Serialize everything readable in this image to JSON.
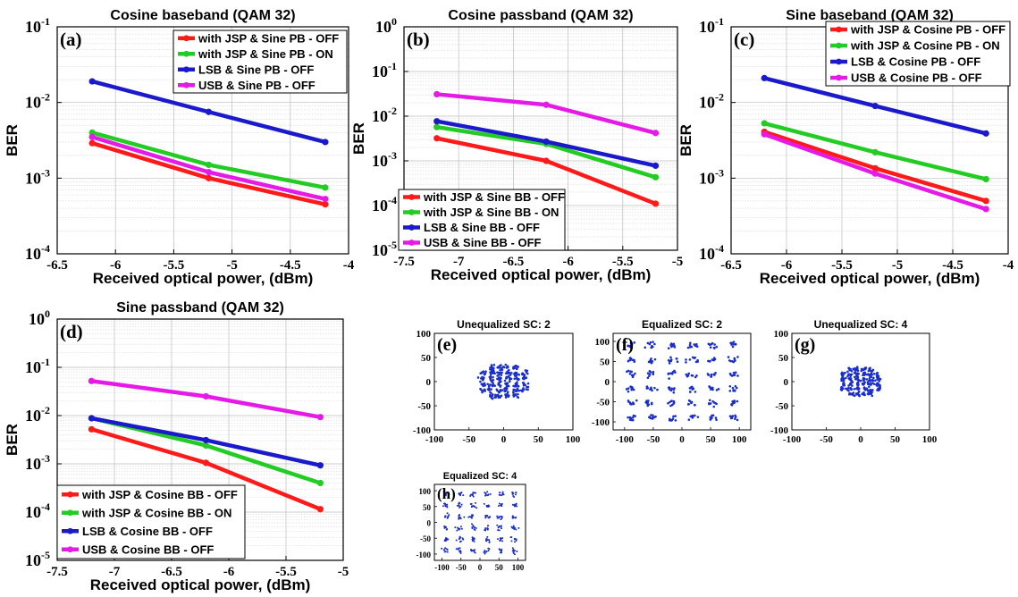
{
  "colors": {
    "red": "#ff1a1a",
    "green": "#22cc22",
    "blue": "#1a1acc",
    "magenta": "#e61ae6",
    "constellation": "#1a2ecc"
  },
  "chart_data": [
    {
      "id": "a",
      "type": "line",
      "scale_y": "log",
      "grid": true,
      "title": "Cosine baseband (QAM 32)",
      "panel_label": "(a)",
      "xlabel": "Received optical power, (dBm)",
      "ylabel": "BER",
      "xlim": [
        -6.5,
        -4
      ],
      "ylim_exp": [
        -4,
        -1
      ],
      "xticks": [
        -6.5,
        -6,
        -5.5,
        -5,
        -4.5,
        -4
      ],
      "xticklabels": [
        "-6.5",
        "-6",
        "-5.5",
        "-5",
        "-4.5",
        "-4"
      ],
      "x": [
        -6.2,
        -5.2,
        -4.2
      ],
      "legend_position": "top-right",
      "series": [
        {
          "name": "with JSP & Sine PB - OFF",
          "color": "#ff1a1a",
          "values": [
            0.0029,
            0.001,
            0.00045
          ]
        },
        {
          "name": "with JSP & Sine PB - ON",
          "color": "#22cc22",
          "values": [
            0.004,
            0.0015,
            0.00075
          ]
        },
        {
          "name": "LSB & Sine PB - OFF",
          "color": "#1a1acc",
          "values": [
            0.019,
            0.0075,
            0.003
          ]
        },
        {
          "name": "USB & Sine PB - OFF",
          "color": "#e61ae6",
          "values": [
            0.0035,
            0.0012,
            0.00053
          ]
        }
      ]
    },
    {
      "id": "b",
      "type": "line",
      "scale_y": "log",
      "grid": true,
      "title": "Cosine passband (QAM 32)",
      "panel_label": "(b)",
      "xlabel": "Received optical power, (dBm)",
      "ylabel": "BER",
      "xlim": [
        -7.5,
        -5
      ],
      "ylim_exp": [
        -5,
        0
      ],
      "xticks": [
        -7.5,
        -7,
        -6.5,
        -6,
        -5.5,
        -5
      ],
      "xticklabels": [
        "-7.5",
        "-7",
        "-6.5",
        "-6",
        "-5.5",
        "-5"
      ],
      "x": [
        -7.2,
        -6.2,
        -5.2
      ],
      "legend_position": "bottom-left",
      "series": [
        {
          "name": "with JSP & Sine BB - OFF",
          "color": "#ff1a1a",
          "values": [
            0.0032,
            0.001,
            0.00011
          ]
        },
        {
          "name": "with JSP & Sine BB - ON",
          "color": "#22cc22",
          "values": [
            0.0057,
            0.0024,
            0.00043
          ]
        },
        {
          "name": "LSB & Sine BB - OFF",
          "color": "#1a1acc",
          "values": [
            0.0077,
            0.0027,
            0.00078
          ]
        },
        {
          "name": "USB & Sine BB - OFF",
          "color": "#e61ae6",
          "values": [
            0.031,
            0.018,
            0.0042
          ]
        }
      ]
    },
    {
      "id": "c",
      "type": "line",
      "scale_y": "log",
      "grid": true,
      "title": "Sine baseband (QAM 32)",
      "panel_label": "(c)",
      "xlabel": "Received optical power, (dBm)",
      "ylabel": "BER",
      "xlim": [
        -6.5,
        -4
      ],
      "ylim_exp": [
        -4,
        -1
      ],
      "xticks": [
        -6.5,
        -6,
        -5.5,
        -5,
        -4.5,
        -4
      ],
      "xticklabels": [
        "-6.5",
        "-6",
        "-5.5",
        "-5",
        "-4.5",
        "-4"
      ],
      "x": [
        -6.2,
        -5.2,
        -4.2
      ],
      "legend_position": "top-right",
      "series": [
        {
          "name": "with JSP & Cosine PB - OFF",
          "color": "#ff1a1a",
          "values": [
            0.0041,
            0.00135,
            0.0005
          ]
        },
        {
          "name": "with JSP & Cosine PB - ON",
          "color": "#22cc22",
          "values": [
            0.0053,
            0.0022,
            0.00097
          ]
        },
        {
          "name": "LSB & Cosine PB - OFF",
          "color": "#1a1acc",
          "values": [
            0.021,
            0.009,
            0.0039
          ]
        },
        {
          "name": "USB & Cosine PB - OFF",
          "color": "#e61ae6",
          "values": [
            0.0038,
            0.00115,
            0.00039
          ]
        }
      ]
    },
    {
      "id": "d",
      "type": "line",
      "scale_y": "log",
      "grid": true,
      "title": "Sine passband (QAM 32)",
      "panel_label": "(d)",
      "xlabel": "Received optical power, (dBm)",
      "ylabel": "BER",
      "xlim": [
        -7.5,
        -5
      ],
      "ylim_exp": [
        -5,
        0
      ],
      "xticks": [
        -7.5,
        -7,
        -6.5,
        -6,
        -5.5,
        -5
      ],
      "xticklabels": [
        "-7.5",
        "-7",
        "-6.5",
        "-6",
        "-5.5",
        "-5"
      ],
      "x": [
        -7.2,
        -6.2,
        -5.2
      ],
      "legend_position": "bottom-left",
      "series": [
        {
          "name": "with JSP & Cosine BB - OFF",
          "color": "#ff1a1a",
          "values": [
            0.0052,
            0.00105,
            0.000115
          ]
        },
        {
          "name": "with JSP & Cosine BB - ON",
          "color": "#22cc22",
          "values": [
            0.0088,
            0.0024,
            0.0004
          ]
        },
        {
          "name": "LSB & Cosine BB - OFF",
          "color": "#1a1acc",
          "values": [
            0.0088,
            0.0031,
            0.00093
          ]
        },
        {
          "name": "USB & Cosine BB - OFF",
          "color": "#e61ae6",
          "values": [
            0.052,
            0.025,
            0.0093
          ]
        }
      ]
    },
    {
      "id": "e",
      "type": "scatter",
      "title": "Unequalized SC: 2",
      "panel_label": "(e)",
      "xlim": [
        -100,
        100
      ],
      "ylim": [
        -100,
        100
      ],
      "xticks": [
        -100,
        -50,
        0,
        50,
        100
      ],
      "yticks": [
        -100,
        -50,
        0,
        50,
        100
      ],
      "constellation": "qam32",
      "spacing": 12,
      "spread": 2.6,
      "points_per_symbol": 9
    },
    {
      "id": "f",
      "type": "scatter",
      "title": "Equalized SC: 2",
      "panel_label": "(f)",
      "xlim": [
        -120,
        120
      ],
      "ylim": [
        -120,
        120
      ],
      "xticks": [
        -100,
        -50,
        0,
        50,
        100
      ],
      "yticks": [
        -100,
        -50,
        0,
        50,
        100
      ],
      "constellation": "qam36",
      "spacing": 36,
      "spread": 4.5,
      "points_per_symbol": 9
    },
    {
      "id": "g",
      "type": "scatter",
      "title": "Unequalized SC: 4",
      "panel_label": "(g)",
      "xlim": [
        -100,
        100
      ],
      "ylim": [
        -100,
        100
      ],
      "xticks": [
        -100,
        -50,
        0,
        50,
        100
      ],
      "yticks": [
        -100,
        -50,
        0,
        50,
        100
      ],
      "constellation": "qam32",
      "spacing": 10,
      "spread": 2.2,
      "points_per_symbol": 9
    },
    {
      "id": "h",
      "type": "scatter",
      "title": "Equalized SC: 4",
      "panel_label": "(h)",
      "xlim": [
        -120,
        120
      ],
      "ylim": [
        -120,
        120
      ],
      "xticks": [
        -100,
        -50,
        0,
        50,
        100
      ],
      "yticks": [
        -100,
        -50,
        0,
        50,
        100
      ],
      "constellation": "qam36",
      "spacing": 36,
      "spread": 4.5,
      "points_per_symbol": 9
    }
  ]
}
